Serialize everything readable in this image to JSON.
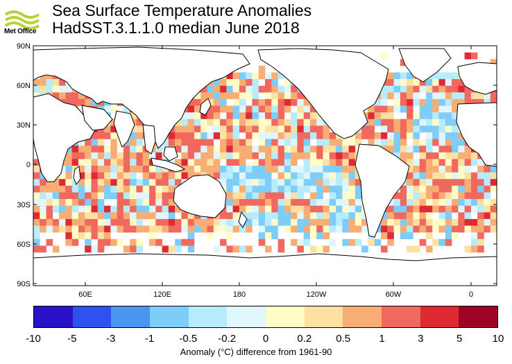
{
  "header": {
    "title": "Sea Surface Temperature Anomalies",
    "subtitle": "HadSST.3.1.1.0 median June 2018",
    "logo_text": "Met Office"
  },
  "map": {
    "lat_labels": [
      "90N",
      "60N",
      "30N",
      "0",
      "30S",
      "60S",
      "90S"
    ],
    "lon_labels": [
      "60E",
      "120E",
      "180",
      "120W",
      "60W",
      "0"
    ]
  },
  "colorbar": {
    "colors": [
      "#2a12c8",
      "#2f52ee",
      "#4a95ee",
      "#7dcdf8",
      "#b6ecfc",
      "#e0f6fd",
      "#fffcc8",
      "#fde1a3",
      "#f8ad75",
      "#f1685e",
      "#de2a33",
      "#9e0225"
    ],
    "labels": [
      "-10",
      "-5",
      "-3",
      "-1",
      "-0.5",
      "-0.2",
      "0",
      "0.2",
      "0.5",
      "1",
      "3",
      "5",
      "10"
    ]
  },
  "caption": "Anomaly (°C) difference from 1961-90"
}
